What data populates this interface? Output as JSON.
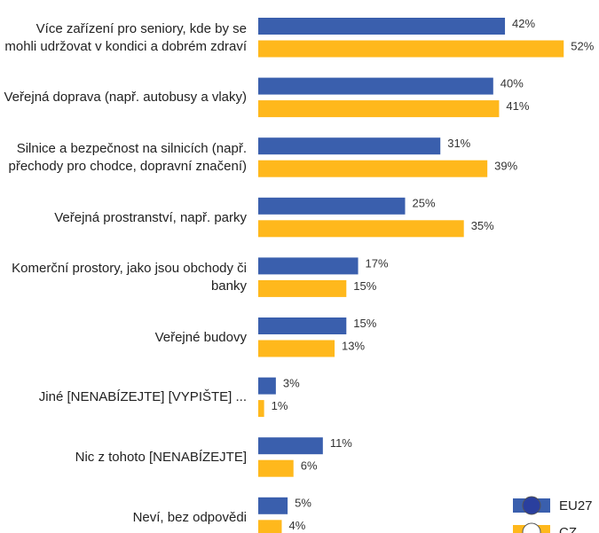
{
  "chart_data": {
    "type": "bar",
    "orientation": "horizontal",
    "categories": [
      "Více zařízení pro seniory, kde by se mohli udržovat v kondici a dobrém zdraví",
      "Veřejná doprava (např. autobusy a vlaky)",
      "Silnice a bezpečnost na silnicích (např. přechody pro chodce, dopravní značení)",
      "Veřejná prostranství, např. parky",
      "Komerční prostory, jako jsou obchody či banky",
      "Veřejné budovy",
      "Jiné [NENABÍZEJTE] [VYPIŠTE] ...",
      "Nic z tohoto [NENABÍZEJTE]",
      "Neví, bez odpovědi"
    ],
    "series": [
      {
        "name": "EU27",
        "color": "#3a5fad",
        "values": [
          42,
          40,
          31,
          25,
          17,
          15,
          3,
          11,
          5
        ],
        "value_labels": [
          "42%",
          "40%",
          "31%",
          "25%",
          "17%",
          "15%",
          "3%",
          "11%",
          "5%"
        ]
      },
      {
        "name": "CZ",
        "color": "#ffb81c",
        "values": [
          52,
          41,
          39,
          35,
          15,
          13,
          1,
          6,
          4
        ],
        "value_labels": [
          "52%",
          "41%",
          "39%",
          "35%",
          "15%",
          "13%",
          "1%",
          "6%",
          "4%"
        ]
      }
    ]
  }
}
